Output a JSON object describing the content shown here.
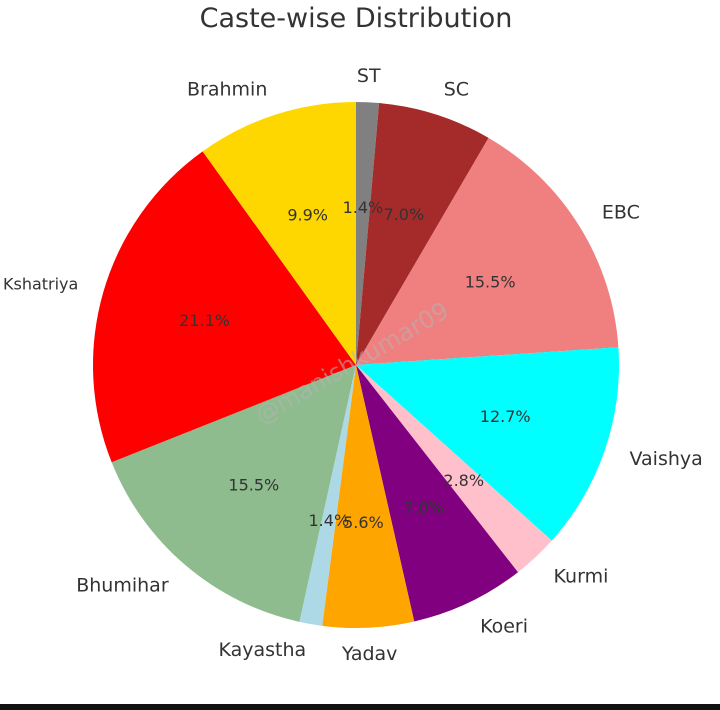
{
  "chart_data": {
    "type": "pie",
    "title": "Caste-wise Distribution",
    "start_angle_deg": 90,
    "direction": "clockwise",
    "slices": [
      {
        "label": "ST",
        "value": 1.4,
        "pct_label": "1.4%",
        "color": "#808080"
      },
      {
        "label": "SC",
        "value": 7.0,
        "pct_label": "7.0%",
        "color": "#a52a2a"
      },
      {
        "label": "EBC",
        "value": 15.5,
        "pct_label": "15.5%",
        "color": "#f08080"
      },
      {
        "label": "Vaishya",
        "value": 12.7,
        "pct_label": "12.7%",
        "color": "#00ffff"
      },
      {
        "label": "Kurmi",
        "value": 2.8,
        "pct_label": "2.8%",
        "color": "#ffc0cb"
      },
      {
        "label": "Koeri",
        "value": 7.0,
        "pct_label": "7.0%",
        "color": "#800080"
      },
      {
        "label": "Yadav",
        "value": 5.6,
        "pct_label": "5.6%",
        "color": "#ffa500"
      },
      {
        "label": "Kayastha",
        "value": 1.4,
        "pct_label": "1.4%",
        "color": "#add8e6"
      },
      {
        "label": "Bhumihar",
        "value": 15.5,
        "pct_label": "15.5%",
        "color": "#8fbc8f"
      },
      {
        "label": "Kshatriya",
        "value": 21.1,
        "pct_label": "21.1%",
        "color": "#ff0000"
      },
      {
        "label": "Brahmin",
        "value": 9.9,
        "pct_label": "9.9%",
        "color": "#ffd700"
      }
    ],
    "watermark": "@manishkumar09",
    "legend": "none"
  }
}
